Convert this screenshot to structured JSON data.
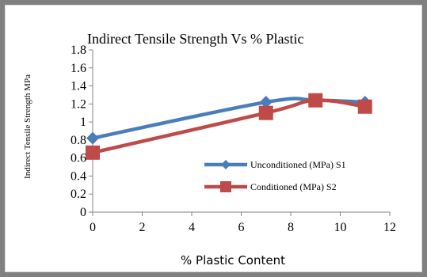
{
  "chart_data": {
    "type": "line",
    "title": "Indirect Tensile Strength  Vs % Plastic",
    "xlabel": "% Plastic  Content",
    "ylabel": "Indirect Tensile Strength MPa",
    "xlim": [
      0,
      12
    ],
    "ylim": [
      0,
      1.8
    ],
    "xticks": [
      "0",
      "2",
      "4",
      "6",
      "8",
      "10",
      "12"
    ],
    "yticks": [
      "0",
      "0.2",
      "0.4",
      "0.6",
      "0.8",
      "1",
      "1.2",
      "1.4",
      "1.6",
      "1.8"
    ],
    "grid": false,
    "legend_position": "right",
    "series": [
      {
        "name": "Unconditioned   (MPa) S1",
        "marker": "diamond",
        "color": "#4a7ebb",
        "x": [
          0,
          7,
          9,
          11
        ],
        "y": [
          0.82,
          1.22,
          1.24,
          1.22
        ]
      },
      {
        "name": "Conditioned   (MPa) S2",
        "marker": "square",
        "color": "#be4b48",
        "x": [
          0,
          7,
          9,
          11
        ],
        "y": [
          0.66,
          1.1,
          1.24,
          1.17
        ]
      }
    ]
  }
}
